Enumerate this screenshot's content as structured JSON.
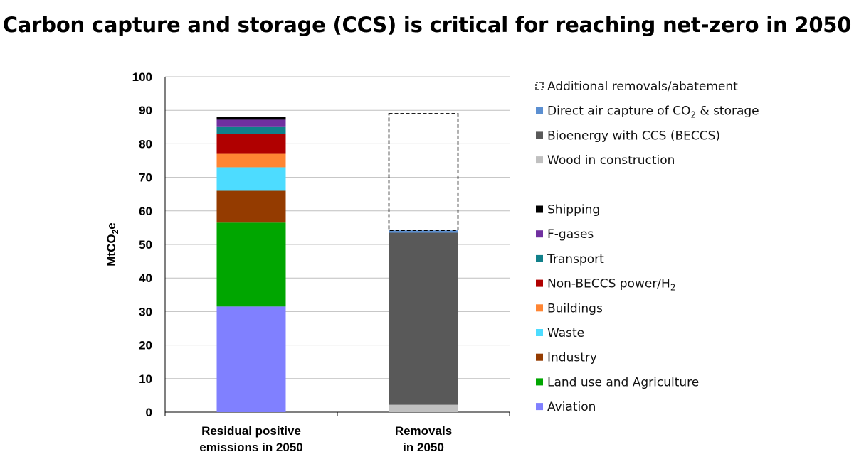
{
  "title": "Carbon capture and storage (CCS) is critical for reaching net-zero in 2050",
  "chart_data": {
    "type": "bar",
    "stacked": true,
    "ylabel": "MtCO2e",
    "ylim": [
      0,
      100
    ],
    "yticks": [
      0,
      10,
      20,
      30,
      40,
      50,
      60,
      70,
      80,
      90,
      100
    ],
    "grid": true,
    "legend_position": "right",
    "categories": [
      "Residual positive emissions in 2050",
      "Removals in 2050"
    ],
    "category_lines": [
      [
        "Residual positive",
        "emissions in 2050"
      ],
      [
        "Removals",
        "in 2050"
      ]
    ],
    "series": [
      {
        "name": "Aviation",
        "color": "#8080ff",
        "values": [
          31.5,
          0
        ]
      },
      {
        "name": "Land use and Agriculture",
        "color": "#00a600",
        "values": [
          25.0,
          0
        ]
      },
      {
        "name": "Industry",
        "color": "#943b00",
        "values": [
          9.5,
          0
        ]
      },
      {
        "name": "Waste",
        "color": "#4ddcff",
        "values": [
          7.0,
          0
        ]
      },
      {
        "name": "Buildings",
        "color": "#ff8533",
        "values": [
          4.0,
          0
        ]
      },
      {
        "name": "Non-BECCS power/H2",
        "color": "#b00000",
        "values": [
          6.0,
          0
        ]
      },
      {
        "name": "Transport",
        "color": "#11808a",
        "values": [
          2.0,
          0
        ]
      },
      {
        "name": "F-gases",
        "color": "#7030a0",
        "values": [
          2.2,
          0
        ]
      },
      {
        "name": "Shipping",
        "color": "#000000",
        "values": [
          0.8,
          0
        ]
      },
      {
        "name": "Wood in construction",
        "color": "#c0c0c0",
        "values": [
          0,
          2.2
        ]
      },
      {
        "name": "Bioenergy with CCS (BECCS)",
        "color": "#595959",
        "values": [
          0,
          51.3
        ]
      },
      {
        "name": "Direct air capture of CO2 & storage",
        "color": "#5b8fd1",
        "values": [
          0,
          0.7
        ]
      },
      {
        "name": "Additional removals/abatement",
        "color": "none",
        "dashed": true,
        "values": [
          0,
          34.8
        ]
      }
    ],
    "legend": [
      {
        "name": "Additional removals/abatement",
        "color": "none",
        "dashed": true
      },
      {
        "name": "Direct air capture of CO2 & storage",
        "display_main": "Direct air capture of CO",
        "display_sub": "2",
        "display_tail": " & storage",
        "color": "#5b8fd1"
      },
      {
        "name": "Bioenergy with CCS (BECCS)",
        "color": "#595959"
      },
      {
        "name": "Wood in construction",
        "color": "#c0c0c0"
      },
      {
        "name": "Shipping",
        "color": "#000000"
      },
      {
        "name": "F-gases",
        "color": "#7030a0"
      },
      {
        "name": "Transport",
        "color": "#11808a"
      },
      {
        "name": "Non-BECCS power/H2",
        "display_main": "Non-BECCS power/H",
        "display_sub": "2",
        "display_tail": "",
        "color": "#b00000"
      },
      {
        "name": "Buildings",
        "color": "#ff8533"
      },
      {
        "name": "Waste",
        "color": "#4ddcff"
      },
      {
        "name": "Industry",
        "color": "#943b00"
      },
      {
        "name": "Land use and Agriculture",
        "color": "#00a600"
      },
      {
        "name": "Aviation",
        "color": "#8080ff"
      }
    ]
  }
}
